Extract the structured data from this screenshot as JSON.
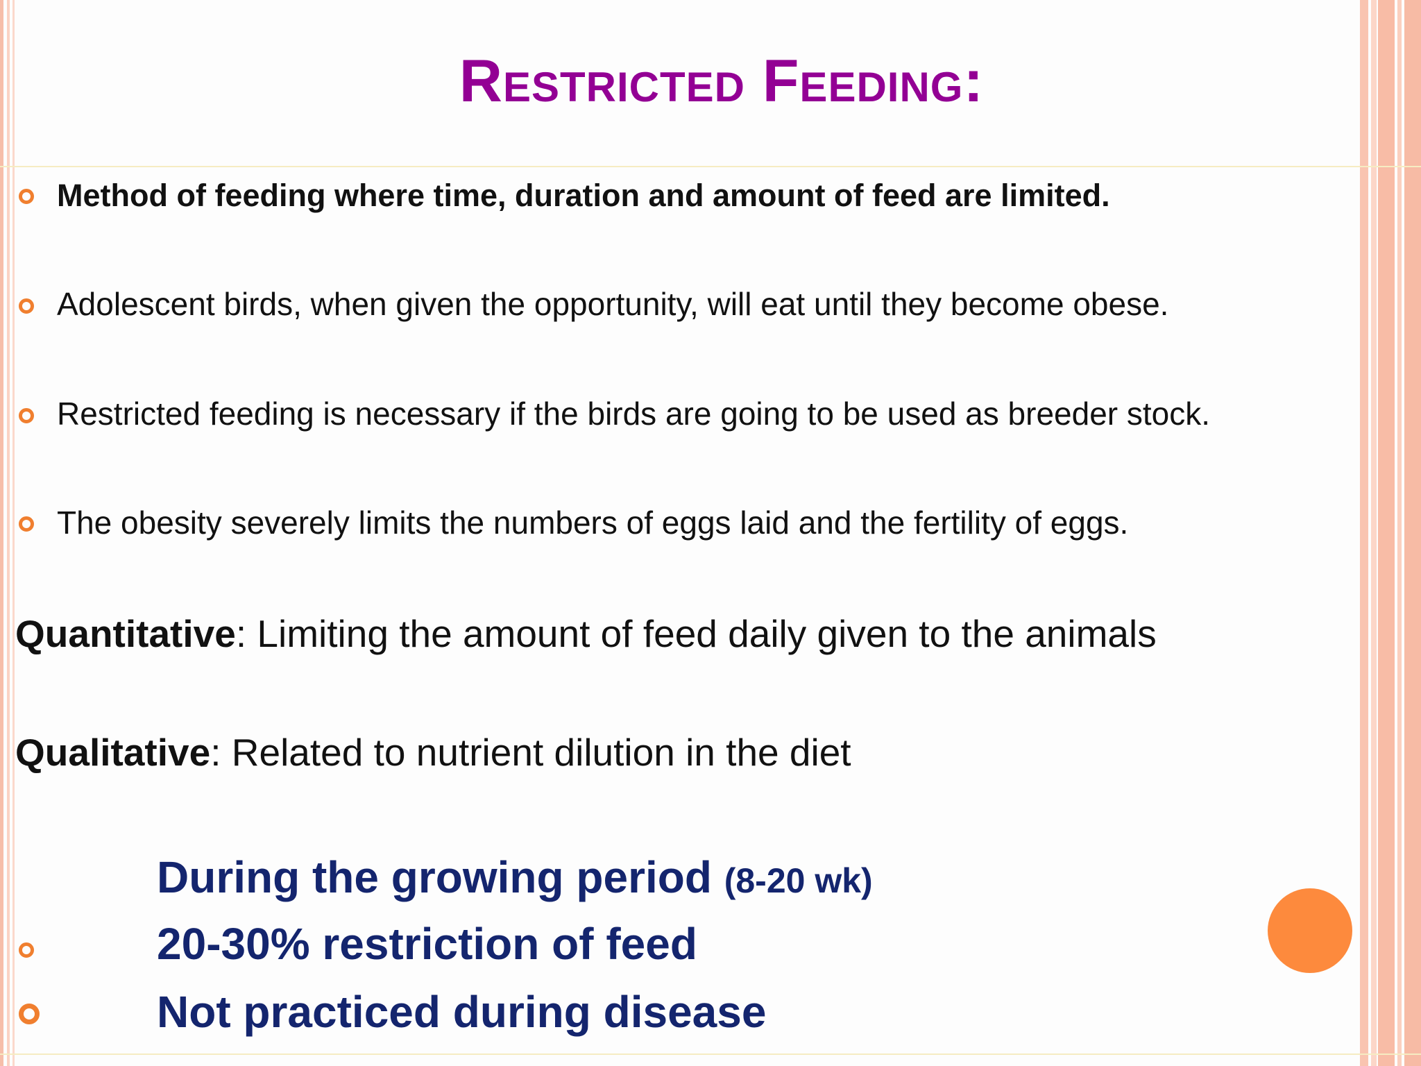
{
  "slide": {
    "title": "Restricted Feeding:",
    "bullets": [
      "Method of feeding where time, duration and amount of feed are limited.",
      "Adolescent birds, when given the opportunity, will eat until they become obese.",
      "Restricted feeding is necessary if the birds are going to be used as breeder stock.",
      "The obesity severely limits the numbers of eggs laid and the fertility of eggs."
    ],
    "definitions": [
      {
        "term": "Quantitative",
        "text": ": Limiting the amount of feed daily given to the animals"
      },
      {
        "term": "Qualitative",
        "text": ": Related to nutrient dilution in the diet"
      }
    ],
    "growing": {
      "heading": "During the growing period ",
      "heading_range": "(8-20 wk)",
      "items": [
        "20-30% restriction of feed",
        "Not practiced during disease"
      ]
    }
  },
  "colors": {
    "title": "#930094",
    "bullet": "#f07f2f",
    "emphasis_text": "#14256e",
    "border_stripes": "#f9c6b3",
    "accent_circle": "#fd8a3d"
  }
}
